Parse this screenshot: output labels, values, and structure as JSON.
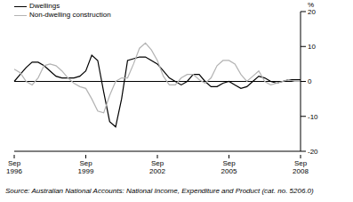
{
  "chart_data": {
    "type": "line",
    "y_label": "%",
    "source": "Source: Australian National Accounts: National Income, Expenditure and Product (cat. no. 5206.0)",
    "categories": [
      "Sep 1996",
      null,
      null,
      null,
      null,
      null,
      null,
      null,
      null,
      null,
      null,
      null,
      "Sep 1999",
      null,
      null,
      null,
      null,
      null,
      null,
      null,
      null,
      null,
      null,
      null,
      "Sep 2002",
      null,
      null,
      null,
      null,
      null,
      null,
      null,
      null,
      null,
      null,
      null,
      "Sep 2005",
      null,
      null,
      null,
      null,
      null,
      null,
      null,
      null,
      null,
      null,
      null,
      "Sep 2008"
    ],
    "series": [
      {
        "name": "Dwellings",
        "color": "#000000",
        "values": [
          0,
          2,
          4,
          5.5,
          5.5,
          4.5,
          3,
          1.5,
          1,
          1,
          1,
          1.5,
          3,
          7.5,
          6,
          -3,
          -11.5,
          -13,
          -5,
          6,
          6.5,
          7,
          7,
          6,
          5,
          3,
          1,
          0,
          -1,
          0,
          2,
          2,
          0,
          -1.5,
          -1.5,
          -0.5,
          0,
          -1,
          -2,
          -1.5,
          0,
          1.5,
          1,
          0,
          -0.5,
          0,
          0.5,
          0.5,
          0.5
        ]
      },
      {
        "name": "Non-dwelling construction",
        "color": "#b3b3b3",
        "values": [
          3.5,
          2.5,
          0,
          -1,
          1,
          4.5,
          5,
          4.5,
          3,
          1,
          -0.5,
          -1.5,
          -2,
          -5,
          -8.5,
          -9,
          -4,
          0,
          1,
          1,
          5,
          9.5,
          11,
          9,
          6,
          1.5,
          -1,
          -1,
          1,
          2,
          2,
          0.5,
          -0.5,
          1,
          4.5,
          6,
          6,
          5,
          2,
          0,
          1.5,
          3,
          0,
          -1,
          -0.5,
          0,
          0.5,
          0,
          0
        ]
      }
    ],
    "ylim": [
      -20,
      20
    ],
    "yticks": [
      -20,
      -10,
      0,
      10,
      20
    ],
    "legend": "top-left"
  }
}
